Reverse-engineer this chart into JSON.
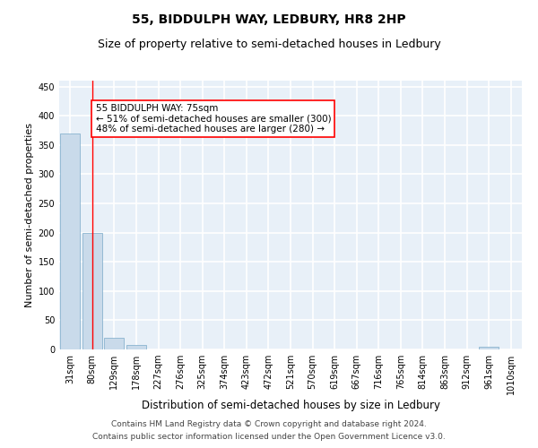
{
  "title": "55, BIDDULPH WAY, LEDBURY, HR8 2HP",
  "subtitle": "Size of property relative to semi-detached houses in Ledbury",
  "xlabel": "Distribution of semi-detached houses by size in Ledbury",
  "ylabel": "Number of semi-detached properties",
  "bins": [
    "31sqm",
    "80sqm",
    "129sqm",
    "178sqm",
    "227sqm",
    "276sqm",
    "325sqm",
    "374sqm",
    "423sqm",
    "472sqm",
    "521sqm",
    "570sqm",
    "619sqm",
    "667sqm",
    "716sqm",
    "765sqm",
    "814sqm",
    "863sqm",
    "912sqm",
    "961sqm",
    "1010sqm"
  ],
  "bar_values": [
    370,
    200,
    20,
    8,
    0,
    0,
    0,
    0,
    0,
    0,
    0,
    0,
    0,
    0,
    0,
    0,
    0,
    0,
    0,
    5,
    0
  ],
  "bar_color": "#c9daea",
  "bar_edge_color": "#7aaac8",
  "red_line_x": 1,
  "annotation_text": "55 BIDDULPH WAY: 75sqm\n← 51% of semi-detached houses are smaller (300)\n48% of semi-detached houses are larger (280) →",
  "annotation_box_color": "white",
  "annotation_box_edge_color": "red",
  "ylim": [
    0,
    460
  ],
  "yticks": [
    0,
    50,
    100,
    150,
    200,
    250,
    300,
    350,
    400,
    450
  ],
  "footer_line1": "Contains HM Land Registry data © Crown copyright and database right 2024.",
  "footer_line2": "Contains public sector information licensed under the Open Government Licence v3.0.",
  "bg_color": "#e8f0f8",
  "grid_color": "white",
  "title_fontsize": 10,
  "subtitle_fontsize": 9,
  "ylabel_fontsize": 8,
  "xlabel_fontsize": 8.5,
  "annot_fontsize": 7.5,
  "tick_fontsize": 7,
  "footer_fontsize": 6.5
}
